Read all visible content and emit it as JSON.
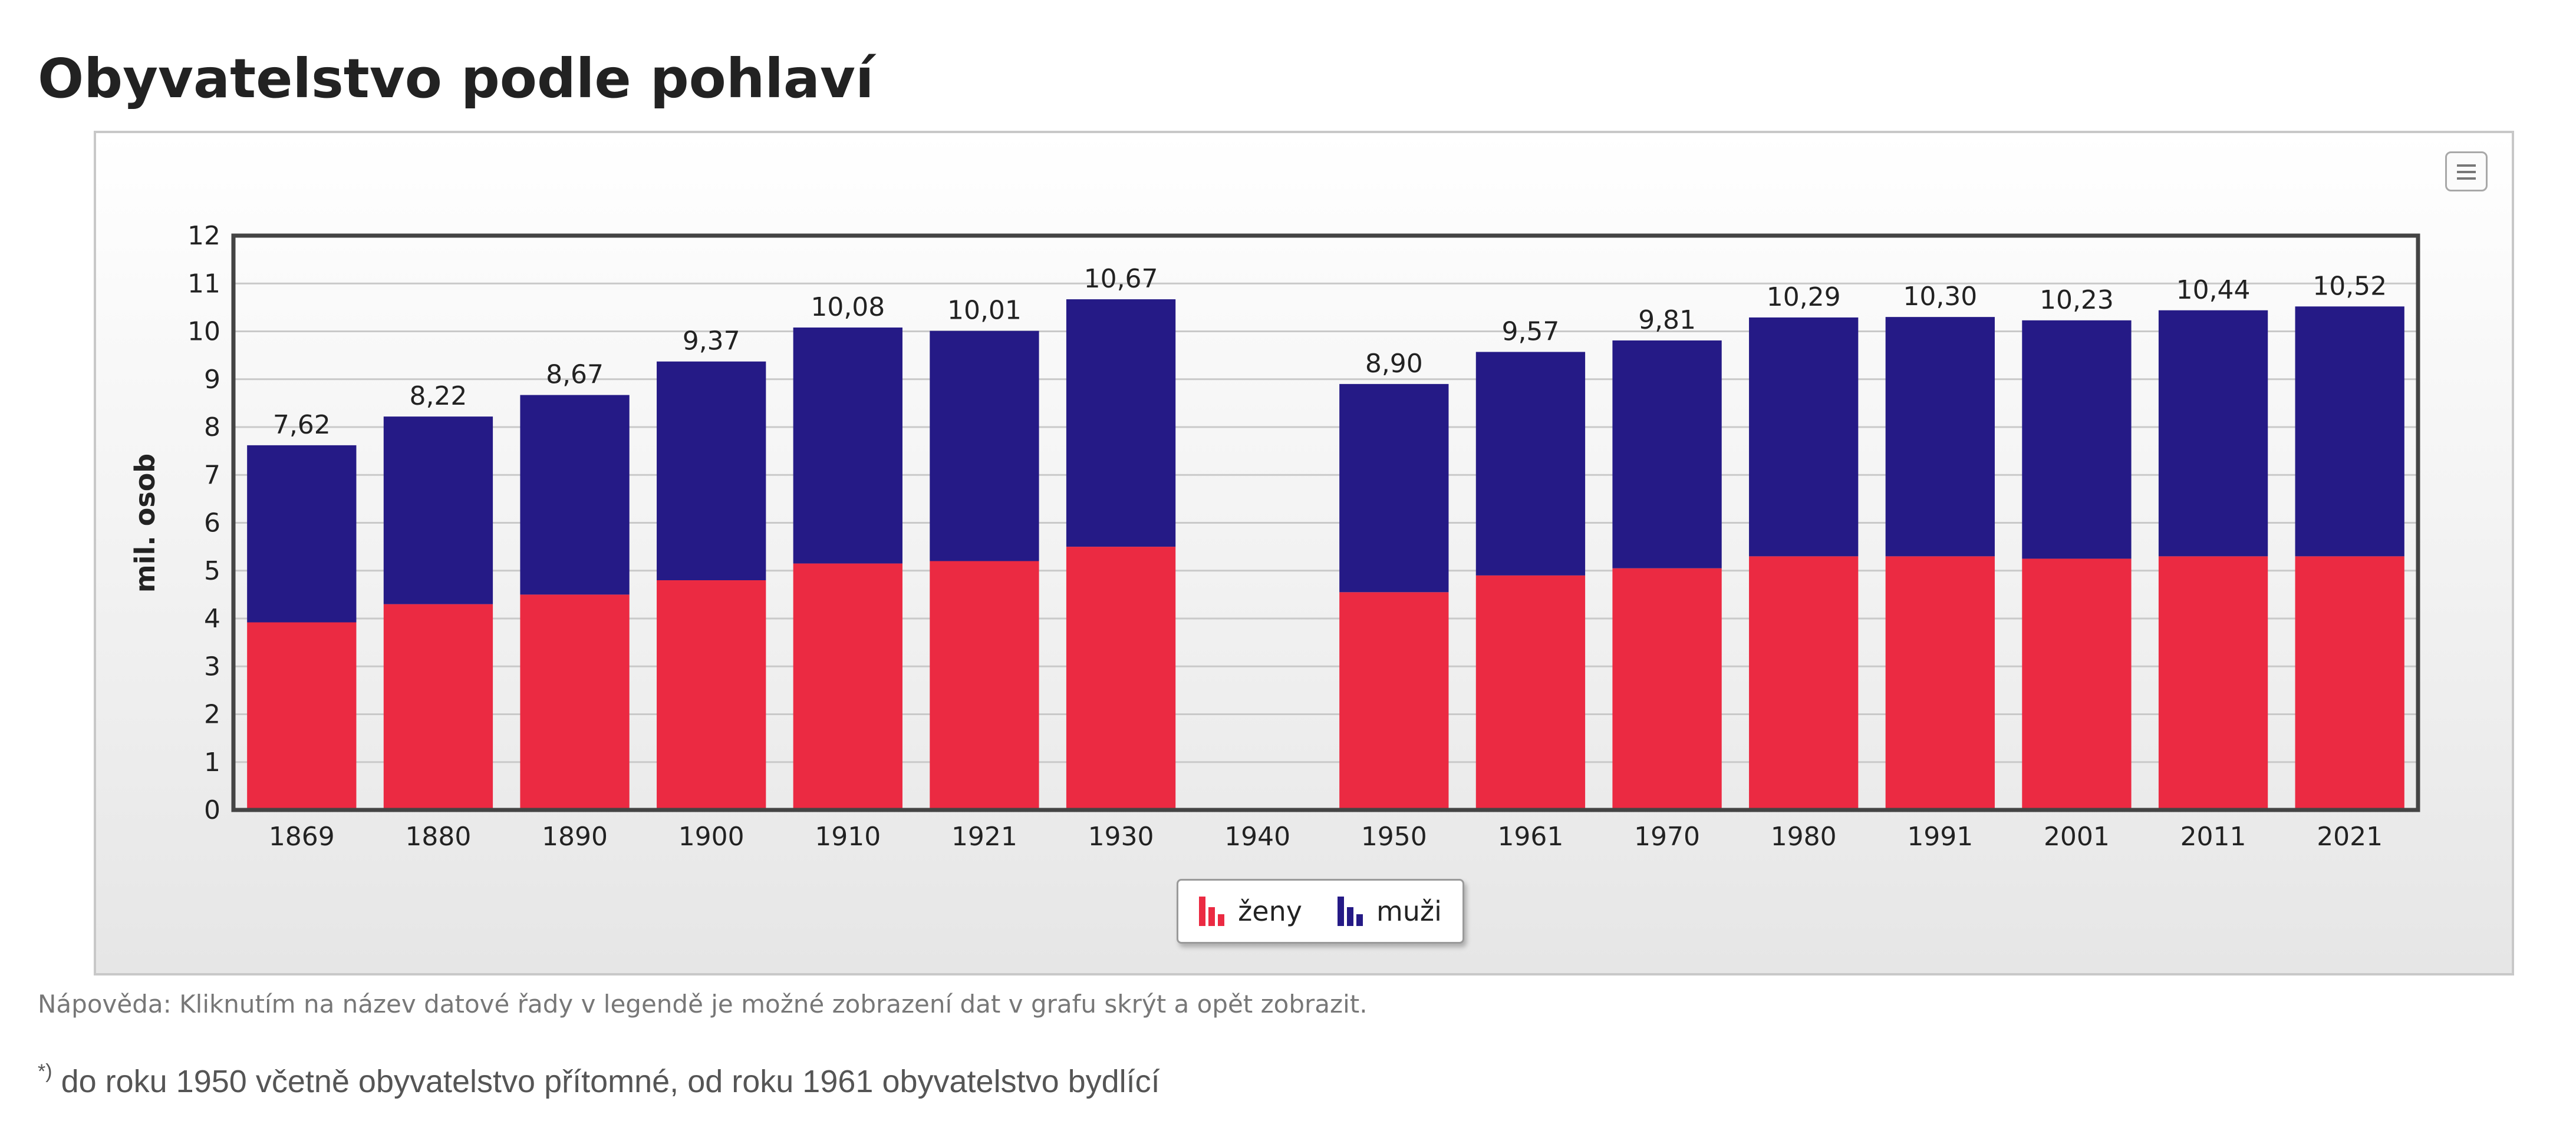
{
  "page": {
    "title": "Obyvatelstvo podle pohlaví",
    "help": "Nápověda: Kliknutím na název datové řady v legendě je možné zobrazení dat v grafu skrýt a opět zobrazit.",
    "footnote_mark": "*)",
    "footnote": " do roku 1950 včetně obyvatelstvo přítomné, od roku 1961 obyvatelstvo bydlící"
  },
  "toolbar": {
    "menu_icon": "hamburger-menu-icon"
  },
  "colors": {
    "zeny": "#eb2a42",
    "muzi": "#251a86",
    "grid": "#c9c9c9",
    "axis": "#444444"
  },
  "chart_data": {
    "type": "bar",
    "stacked": true,
    "categories": [
      "1869",
      "1880",
      "1890",
      "1900",
      "1910",
      "1921",
      "1930",
      "1940",
      "1950",
      "1961",
      "1970",
      "1980",
      "1991",
      "2001",
      "2011",
      "2021"
    ],
    "series": [
      {
        "name": "ženy",
        "values": [
          3.92,
          4.3,
          4.5,
          4.8,
          5.15,
          5.2,
          5.5,
          null,
          4.55,
          4.9,
          5.05,
          5.3,
          5.3,
          5.25,
          5.3,
          5.3
        ]
      },
      {
        "name": "muži",
        "values": [
          3.7,
          3.92,
          4.17,
          4.57,
          4.93,
          4.81,
          5.17,
          null,
          4.35,
          4.67,
          4.76,
          4.99,
          5.0,
          4.98,
          5.14,
          5.22
        ]
      }
    ],
    "totals": [
      7.62,
      8.22,
      8.67,
      9.37,
      10.08,
      10.01,
      10.67,
      null,
      8.9,
      9.57,
      9.81,
      10.29,
      10.3,
      10.23,
      10.44,
      10.52
    ],
    "total_labels": [
      "7,62",
      "8,22",
      "8,67",
      "9,37",
      "10,08",
      "10,01",
      "10,67",
      "",
      "8,90",
      "9,57",
      "9,81",
      "10,29",
      "10,30",
      "10,23",
      "10,44",
      "10,52"
    ],
    "title": "",
    "xlabel": "",
    "ylabel": "mil. osob",
    "ylim": [
      0,
      12
    ],
    "yticks": [
      "0",
      "1",
      "2",
      "3",
      "4",
      "5",
      "6",
      "7",
      "8",
      "9",
      "10",
      "11",
      "12"
    ],
    "grid": true,
    "legend": "bottom-center"
  }
}
